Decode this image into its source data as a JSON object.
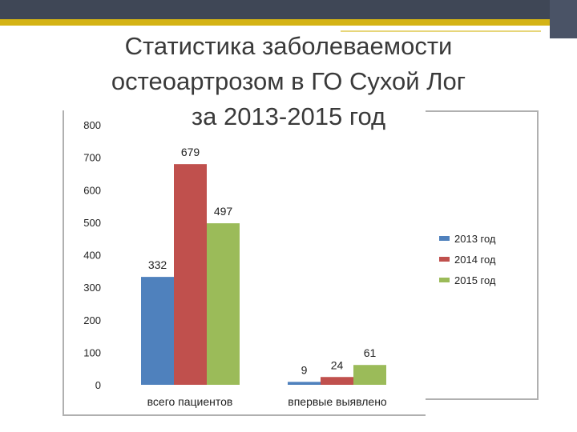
{
  "slide": {
    "title_lines": [
      "Статистика заболеваемости",
      "остеоартрозом в ГО Сухой Лог",
      "за 2013-2015 год"
    ]
  },
  "colors": {
    "band_dark": "#3f4756",
    "band_gold": "#d4b315"
  },
  "chart_data": {
    "type": "bar",
    "title": "",
    "xlabel": "",
    "ylabel": "",
    "ylim": [
      0,
      800
    ],
    "yticks": [
      0,
      100,
      200,
      300,
      400,
      500,
      600,
      700,
      800
    ],
    "grid": false,
    "legend_position": "right",
    "categories": [
      "всего пациентов",
      "впервые выявлено"
    ],
    "series": [
      {
        "name": "2013 год",
        "color": "#4f81bd",
        "values": [
          332,
          9
        ]
      },
      {
        "name": "2014 год",
        "color": "#c0504d",
        "values": [
          679,
          24
        ]
      },
      {
        "name": "2015 год",
        "color": "#9bbb59",
        "values": [
          497,
          61
        ]
      }
    ],
    "data_labels": [
      [
        "332",
        "9"
      ],
      [
        "679",
        "24"
      ],
      [
        "497",
        "61"
      ]
    ]
  }
}
